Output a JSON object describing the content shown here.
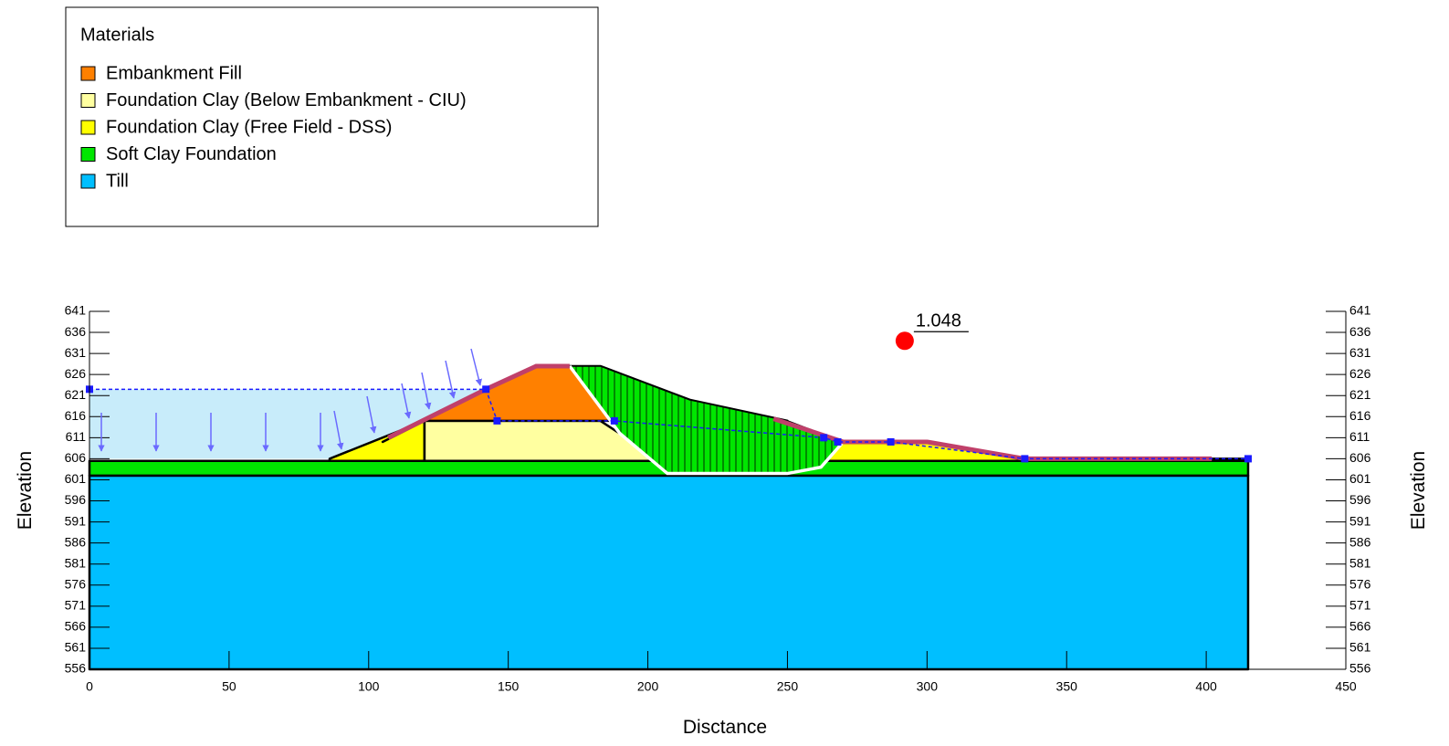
{
  "chart_data": {
    "type": "slope",
    "xlabel": "Disctance",
    "ylabel": "Elevation",
    "y2label": "Elevation",
    "xlim": [
      0,
      450
    ],
    "xticks": [
      0,
      50,
      100,
      150,
      200,
      250,
      300,
      350,
      400,
      450
    ],
    "ylim": [
      556,
      641
    ],
    "yticks": [
      556,
      561,
      566,
      571,
      576,
      581,
      586,
      591,
      596,
      601,
      606,
      611,
      616,
      621,
      626,
      631,
      636,
      641
    ],
    "legend": {
      "title": "Materials",
      "items": [
        {
          "name": "Embankment Fill",
          "color": "#ff8000",
          "polygons": [
            [
              [
                105,
                610
              ],
              [
                142,
                622.5
              ],
              [
                160,
                628
              ],
              [
                183,
                628
              ],
              [
                215,
                620
              ],
              [
                250,
                615
              ],
              [
                120,
                615
              ]
            ]
          ]
        },
        {
          "name": "Foundation Clay (Below Embankment - CIU)",
          "color": "#ffffa0",
          "polygons": [
            [
              [
                120,
                605.5
              ],
              [
                120,
                615
              ],
              [
                183,
                615
              ],
              [
                205,
                605.5
              ]
            ]
          ]
        },
        {
          "name": "Foundation Clay (Free Field - DSS)",
          "color": "#ffff00",
          "polygons": [
            [
              [
                86,
                606
              ],
              [
                120,
                615
              ],
              [
                120,
                605.5
              ],
              [
                86,
                605.5
              ]
            ],
            [
              [
                262,
                605.5
              ],
              [
                270,
                610
              ],
              [
                300,
                610
              ],
              [
                335,
                606
              ],
              [
                415,
                606
              ],
              [
                415,
                605.5
              ]
            ]
          ]
        },
        {
          "name": "Soft Clay Foundation",
          "color": "#00e600",
          "polygons": [
            [
              [
                0,
                602
              ],
              [
                415,
                602
              ],
              [
                415,
                605.5
              ],
              [
                0,
                605.5
              ]
            ]
          ]
        },
        {
          "name": "Till",
          "color": "#00bfff",
          "polygons": [
            [
              [
                0,
                556
              ],
              [
                415,
                556
              ],
              [
                415,
                602
              ],
              [
                0,
                602
              ]
            ]
          ]
        }
      ]
    },
    "ponded_water": [
      [
        0,
        606
      ],
      [
        86,
        606
      ],
      [
        105,
        610
      ],
      [
        142,
        622.5
      ],
      [
        0,
        622.5
      ]
    ],
    "piezometric_line": [
      [
        0,
        622.5
      ],
      [
        142,
        622.5
      ],
      [
        146,
        615
      ],
      [
        188,
        615
      ],
      [
        263,
        611
      ],
      [
        268,
        610
      ],
      [
        287,
        610
      ],
      [
        335,
        606
      ],
      [
        415,
        606
      ]
    ],
    "slip_mass": [
      [
        172,
        628
      ],
      [
        190,
        612
      ],
      [
        207,
        602.5
      ],
      [
        250,
        602.5
      ],
      [
        262,
        604
      ],
      [
        270,
        610
      ],
      [
        250,
        615
      ],
      [
        215,
        620
      ],
      [
        183,
        628
      ]
    ],
    "factor_of_safety": 1.048,
    "slip_center": [
      292,
      634
    ]
  }
}
